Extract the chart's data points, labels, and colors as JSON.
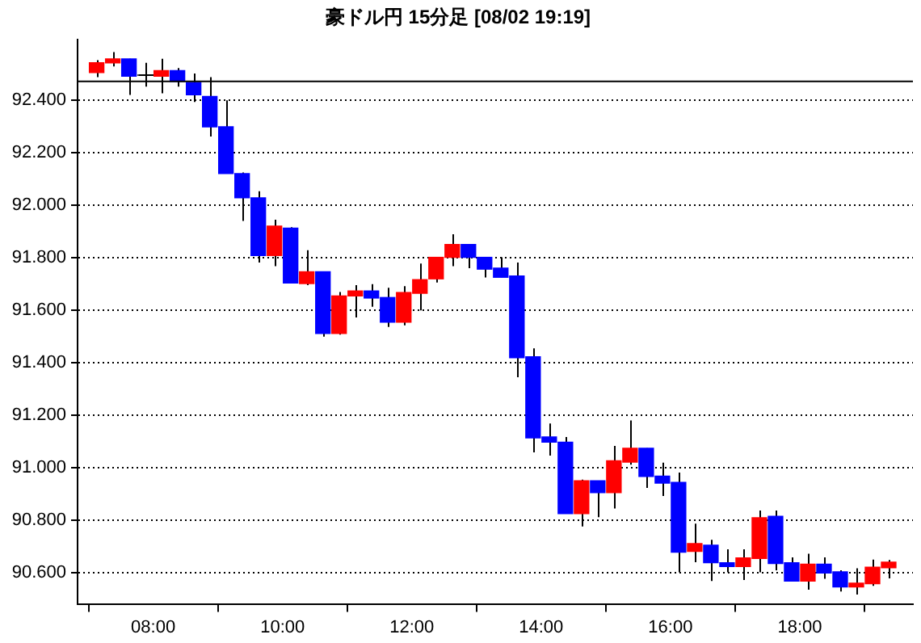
{
  "chart_data": {
    "type": "candlestick",
    "title": "豪ドル円 15分足 [08/02 19:19]",
    "x": [
      7.125,
      7.375,
      7.625,
      7.875,
      8.125,
      8.375,
      8.625,
      8.875,
      9.125,
      9.375,
      9.625,
      9.875,
      10.125,
      10.375,
      10.625,
      10.875,
      11.125,
      11.375,
      11.625,
      11.875,
      12.125,
      12.375,
      12.625,
      12.875,
      13.125,
      13.375,
      13.625,
      13.875,
      14.125,
      14.375,
      14.625,
      14.875,
      15.125,
      15.375,
      15.625,
      15.875,
      16.125,
      16.375,
      16.625,
      16.875,
      17.125,
      17.375,
      17.625,
      17.875,
      18.125,
      18.375,
      18.625,
      18.875,
      19.125,
      19.375
    ],
    "ohlc": [
      [
        92.504,
        92.551,
        92.486,
        92.541
      ],
      [
        92.541,
        92.582,
        92.527,
        92.556
      ],
      [
        92.556,
        92.556,
        92.419,
        92.49
      ],
      [
        92.494,
        92.541,
        92.45,
        92.494
      ],
      [
        92.49,
        92.556,
        92.425,
        92.511
      ],
      [
        92.511,
        92.521,
        92.45,
        92.47
      ],
      [
        92.466,
        92.5,
        92.392,
        92.419
      ],
      [
        92.413,
        92.486,
        92.26,
        92.297
      ],
      [
        92.297,
        92.398,
        92.119,
        92.119
      ],
      [
        92.119,
        92.123,
        91.939,
        92.027
      ],
      [
        92.027,
        92.052,
        91.78,
        91.807
      ],
      [
        91.807,
        91.943,
        91.766,
        91.919
      ],
      [
        91.911,
        91.915,
        91.702,
        91.702
      ],
      [
        91.7,
        91.827,
        91.694,
        91.745
      ],
      [
        91.745,
        91.745,
        91.498,
        91.51
      ],
      [
        91.51,
        91.668,
        91.506,
        91.653
      ],
      [
        91.653,
        91.694,
        91.571,
        91.672
      ],
      [
        91.672,
        91.698,
        91.612,
        91.645
      ],
      [
        91.647,
        91.684,
        91.535,
        91.553
      ],
      [
        91.553,
        91.69,
        91.541,
        91.666
      ],
      [
        91.663,
        91.776,
        91.598,
        91.715
      ],
      [
        91.718,
        91.8,
        91.704,
        91.8
      ],
      [
        91.8,
        91.888,
        91.766,
        91.849
      ],
      [
        91.849,
        91.849,
        91.759,
        91.8
      ],
      [
        91.8,
        91.8,
        91.723,
        91.755
      ],
      [
        91.759,
        91.8,
        91.724,
        91.724
      ],
      [
        91.729,
        91.78,
        91.343,
        91.418
      ],
      [
        91.421,
        91.453,
        91.057,
        91.112
      ],
      [
        91.116,
        91.167,
        91.045,
        91.096
      ],
      [
        91.096,
        91.116,
        90.824,
        90.824
      ],
      [
        90.824,
        90.953,
        90.775,
        90.949
      ],
      [
        90.949,
        90.949,
        90.81,
        90.904
      ],
      [
        90.904,
        91.082,
        90.843,
        91.025
      ],
      [
        91.02,
        91.179,
        91.01,
        91.073
      ],
      [
        91.073,
        91.073,
        90.922,
        90.965
      ],
      [
        90.967,
        91.018,
        90.891,
        90.94
      ],
      [
        90.943,
        90.98,
        90.6,
        90.677
      ],
      [
        90.68,
        90.786,
        90.639,
        90.71
      ],
      [
        90.704,
        90.724,
        90.567,
        90.637
      ],
      [
        90.637,
        90.688,
        90.6,
        90.622
      ],
      [
        90.622,
        90.688,
        90.571,
        90.655
      ],
      [
        90.653,
        90.836,
        90.6,
        90.808
      ],
      [
        90.814,
        90.836,
        90.608,
        90.634
      ],
      [
        90.637,
        90.657,
        90.567,
        90.567
      ],
      [
        90.567,
        90.671,
        90.534,
        90.631
      ],
      [
        90.631,
        90.657,
        90.576,
        90.598
      ],
      [
        90.602,
        90.608,
        90.527,
        90.545
      ],
      [
        90.545,
        90.616,
        90.516,
        90.559
      ],
      [
        90.557,
        90.649,
        90.549,
        90.62
      ],
      [
        90.618,
        90.647,
        90.577,
        90.639
      ]
    ],
    "colors": [
      "#ff0000",
      "#ff0000",
      "#0000ff",
      "#000000",
      "#ff0000",
      "#0000ff",
      "#0000ff",
      "#0000ff",
      "#0000ff",
      "#0000ff",
      "#0000ff",
      "#ff0000",
      "#0000ff",
      "#ff0000",
      "#0000ff",
      "#ff0000",
      "#ff0000",
      "#0000ff",
      "#0000ff",
      "#ff0000",
      "#ff0000",
      "#ff0000",
      "#ff0000",
      "#0000ff",
      "#0000ff",
      "#0000ff",
      "#0000ff",
      "#0000ff",
      "#0000ff",
      "#0000ff",
      "#ff0000",
      "#0000ff",
      "#ff0000",
      "#ff0000",
      "#0000ff",
      "#0000ff",
      "#0000ff",
      "#ff0000",
      "#0000ff",
      "#0000ff",
      "#ff0000",
      "#ff0000",
      "#0000ff",
      "#0000ff",
      "#ff0000",
      "#0000ff",
      "#0000ff",
      "#ff0000",
      "#ff0000",
      "#ff0000"
    ],
    "xlim": [
      6.83,
      19.75
    ],
    "xticks": [
      {
        "value": 8,
        "label": "08:00"
      },
      {
        "value": 10,
        "label": "10:00"
      },
      {
        "value": 12,
        "label": "12:00"
      },
      {
        "value": 14,
        "label": "14:00"
      },
      {
        "value": 16,
        "label": "16:00"
      },
      {
        "value": 18,
        "label": "18:00"
      }
    ],
    "ylim": [
      90.48,
      92.63
    ],
    "yticks": [
      {
        "value": 90.6,
        "label": "90.600"
      },
      {
        "value": 90.8,
        "label": "90.800"
      },
      {
        "value": 91.0,
        "label": "91.000"
      },
      {
        "value": 91.2,
        "label": "91.200"
      },
      {
        "value": 91.4,
        "label": "91.400"
      },
      {
        "value": 91.6,
        "label": "91.600"
      },
      {
        "value": 91.8,
        "label": "91.800"
      },
      {
        "value": 92.0,
        "label": "92.000"
      },
      {
        "value": 92.2,
        "label": "92.200"
      },
      {
        "value": 92.4,
        "label": "92.400"
      }
    ],
    "ref_lines": [
      {
        "axis": "y",
        "value": 92.47,
        "color": "#000000"
      }
    ],
    "grid": "y",
    "legend": false
  }
}
